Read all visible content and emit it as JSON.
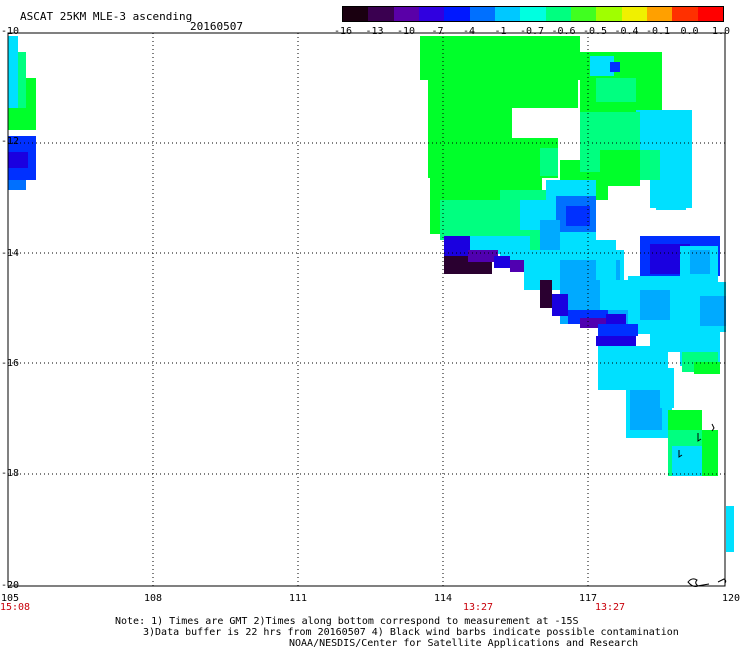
{
  "header": {
    "title": "ASCAT 25KM MLE-3 ascending",
    "date": "20160507"
  },
  "colorbar": {
    "ticks": [
      "-16",
      "-13",
      "-10",
      "-7",
      "-4",
      "-1",
      "-0.7",
      "-0.6",
      "-0.5",
      "-0.4",
      "-0.1",
      "0.0",
      "1.0"
    ],
    "colors": [
      "#1a0010",
      "#3a0050",
      "#5a00a8",
      "#3000e0",
      "#0018ff",
      "#0070ff",
      "#00c8ff",
      "#00ffe0",
      "#00ff80",
      "#40ff20",
      "#a0ff00",
      "#f0f000",
      "#ffa000",
      "#ff3000",
      "#ff0000"
    ]
  },
  "axes": {
    "lat_labels": [
      "-10",
      "-12",
      "-14",
      "-16",
      "-18",
      "-20"
    ],
    "lon_labels": [
      "105",
      "108",
      "111",
      "114",
      "117",
      "120"
    ],
    "times": [
      "15:08",
      "13:27",
      "13:27"
    ]
  },
  "notes": {
    "line1": "Note: 1) Times are GMT 2)Times along bottom correspond to measurement at -15S",
    "line2": "3)Data buffer is 22 hrs from 20160507 4) Black wind barbs indicate possible contamination",
    "line3": "NOAA/NESDIS/Center for Satellite Applications and Research"
  },
  "colors": {
    "green": "#00ff2a",
    "green_teal": "#00ff80",
    "cyan": "#00e0ff",
    "light_blue": "#00aaff",
    "mid_blue": "#0070ff",
    "blue": "#0030ff",
    "deep_blue": "#1a00e0",
    "purple": "#5000b0",
    "dark_purple": "#2a0030",
    "timestamp_red": "#c8000a"
  },
  "swaths": {
    "left": "west swath 105E",
    "right": "main swath 114E-120E",
    "edge": "east edge 120E"
  }
}
